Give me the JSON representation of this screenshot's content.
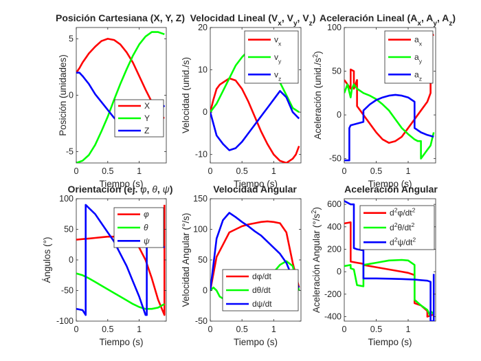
{
  "chart_data": [
    {
      "type": "line",
      "title": "Posición Cartesiana (X, Y, Z)",
      "xlabel": "Tiempo (s)",
      "ylabel": "Posición (unidades)",
      "xlim": [
        0,
        1.43
      ],
      "ylim": [
        -6,
        6
      ],
      "xticks": [
        0,
        0.5,
        1
      ],
      "xtick_labels": [
        "0",
        "0.5",
        "1"
      ],
      "yticks": [
        -5,
        0,
        5
      ],
      "ytick_labels": [
        "-5",
        "0",
        "5"
      ],
      "legend_loc": "lower-right",
      "colors": {
        "X": "#ff0000",
        "Y": "#00ff00",
        "Z": "#0000ff"
      },
      "series": [
        {
          "name": "X",
          "label": "X",
          "color": "#ff0000",
          "x": [
            0,
            0.05,
            0.1,
            0.2,
            0.3,
            0.4,
            0.5,
            0.6,
            0.7,
            0.8,
            0.9,
            1.0,
            1.1,
            1.2,
            1.3,
            1.35,
            1.4
          ],
          "y": [
            2.0,
            2.4,
            2.9,
            3.7,
            4.3,
            4.8,
            5.0,
            4.9,
            4.5,
            3.8,
            2.9,
            1.7,
            0.5,
            -0.6,
            -1.6,
            -2.0,
            -2.0
          ]
        },
        {
          "name": "Y",
          "label": "Y",
          "color": "#00ff00",
          "x": [
            0,
            0.1,
            0.2,
            0.3,
            0.4,
            0.5,
            0.6,
            0.7,
            0.8,
            0.9,
            1.0,
            1.1,
            1.2,
            1.3,
            1.4
          ],
          "y": [
            -6.0,
            -5.8,
            -5.3,
            -4.4,
            -3.2,
            -1.9,
            -0.4,
            1.0,
            2.3,
            3.5,
            4.5,
            5.2,
            5.6,
            5.6,
            5.4
          ]
        },
        {
          "name": "Z",
          "label": "Z",
          "color": "#0000ff",
          "x": [
            0,
            0.05,
            0.1,
            0.2,
            0.3,
            0.4,
            0.5,
            0.6,
            0.7,
            0.8,
            0.9,
            1.0,
            1.1,
            1.2,
            1.3,
            1.4
          ],
          "y": [
            2.0,
            2.0,
            1.7,
            1.0,
            0.1,
            -0.6,
            -1.3,
            -2.0,
            -2.6,
            -3.0,
            -3.2,
            -3.2,
            -2.9,
            -2.3,
            -1.5,
            -0.9
          ]
        }
      ]
    },
    {
      "type": "line",
      "title_parts": [
        "Velocidad Lineal (V",
        "x",
        ", V",
        "y",
        ", V",
        "z",
        ")"
      ],
      "xlabel": "Tiempo (s)",
      "ylabel": "Velocidad (unid./s)",
      "xlim": [
        0,
        1.43
      ],
      "ylim": [
        -12,
        20
      ],
      "xticks": [
        0,
        0.5,
        1
      ],
      "xtick_labels": [
        "0",
        "0.5",
        "1"
      ],
      "yticks": [
        -10,
        0,
        10,
        20
      ],
      "ytick_labels": [
        "-10",
        "0",
        "10",
        "20"
      ],
      "legend_loc": "top-right",
      "colors": {
        "vx": "#ff0000",
        "vy": "#00ff00",
        "vz": "#0000ff"
      },
      "series": [
        {
          "name": "vx",
          "label": "v",
          "sub": "x",
          "color": "#ff0000",
          "x": [
            0,
            0.05,
            0.1,
            0.15,
            0.2,
            0.3,
            0.4,
            0.5,
            0.6,
            0.7,
            0.8,
            0.9,
            1.0,
            1.1,
            1.2,
            1.3,
            1.35,
            1.4
          ],
          "y": [
            0,
            3,
            5.5,
            6.5,
            7,
            8,
            7.5,
            5.5,
            2.5,
            -1,
            -4.5,
            -7.5,
            -10,
            -11.5,
            -12,
            -11,
            -10,
            -8
          ]
        },
        {
          "name": "vy",
          "label": "v",
          "sub": "y",
          "color": "#00ff00",
          "x": [
            0,
            0.1,
            0.2,
            0.3,
            0.4,
            0.5,
            0.6,
            0.7,
            0.8,
            0.9,
            1.0,
            1.1,
            1.2,
            1.3,
            1.4
          ],
          "y": [
            0,
            2,
            5,
            8,
            11,
            13,
            14.5,
            15,
            14.5,
            13,
            10.5,
            7,
            4,
            1,
            0
          ]
        },
        {
          "name": "vz",
          "label": "v",
          "sub": "z",
          "color": "#0000ff",
          "x": [
            0,
            0.1,
            0.2,
            0.3,
            0.4,
            0.5,
            0.6,
            0.7,
            0.8,
            0.9,
            1.0,
            1.1,
            1.2,
            1.3,
            1.4
          ],
          "y": [
            0,
            -5.5,
            -7.5,
            -9,
            -8.5,
            -7,
            -5,
            -3,
            -1,
            1,
            3,
            5,
            3.5,
            0,
            -1.5
          ]
        }
      ]
    },
    {
      "type": "line",
      "title_parts": [
        "Aceleración Lineal (A",
        "x",
        ", A",
        "y",
        ", A",
        "z",
        ")"
      ],
      "xlabel": "Tiempo (s)",
      "ylabel_parts": [
        "Aceleración (unid./s",
        "2",
        ")"
      ],
      "xlim": [
        0,
        1.43
      ],
      "ylim": [
        -55,
        100
      ],
      "xticks": [
        0,
        0.5,
        1
      ],
      "xtick_labels": [
        "0",
        "0.5",
        "1"
      ],
      "yticks": [
        -50,
        0,
        50,
        100
      ],
      "ytick_labels": [
        "-50",
        "0",
        "50",
        "100"
      ],
      "legend_loc": "top-right",
      "colors": {
        "ax": "#ff0000",
        "ay": "#00ff00",
        "az": "#0000ff"
      },
      "series": [
        {
          "name": "ax",
          "label": "a",
          "sub": "x",
          "color": "#ff0000",
          "x": [
            0,
            0.1,
            0.1,
            0.15,
            0.15,
            0.2,
            0.2,
            0.25,
            0.3,
            0.4,
            0.5,
            0.6,
            0.7,
            0.8,
            0.9,
            1.0,
            1.1,
            1.2,
            1.3,
            1.35,
            1.35,
            1.4
          ],
          "y": [
            40,
            30,
            52,
            50,
            30,
            40,
            10,
            5,
            0,
            -10,
            -20,
            -28,
            -32,
            -30,
            -25,
            -15,
            -5,
            5,
            15,
            25,
            90,
            92
          ]
        },
        {
          "name": "ay",
          "label": "a",
          "sub": "y",
          "color": "#00ff00",
          "x": [
            0,
            0.05,
            0.1,
            0.12,
            0.15,
            0.2,
            0.3,
            0.4,
            0.5,
            0.6,
            0.7,
            0.8,
            0.9,
            1.0,
            1.1,
            1.15,
            1.2,
            1.2,
            1.3,
            1.35,
            1.4
          ],
          "y": [
            25,
            35,
            20,
            30,
            35,
            30,
            25,
            22,
            18,
            12,
            5,
            -5,
            -15,
            -22,
            -28,
            -30,
            -30,
            -50,
            -40,
            -35,
            -20
          ]
        },
        {
          "name": "az",
          "label": "a",
          "sub": "z",
          "color": "#0000ff",
          "x": [
            0,
            0.08,
            0.08,
            0.1,
            0.2,
            0.3,
            0.3,
            0.4,
            0.5,
            0.6,
            0.7,
            0.8,
            0.9,
            1.0,
            1.1,
            1.1,
            1.2,
            1.3,
            1.4
          ],
          "y": [
            -52,
            -52,
            -15,
            -12,
            -10,
            -8,
            5,
            12,
            17,
            20,
            22,
            23,
            22,
            20,
            15,
            -15,
            -20,
            -23,
            -25
          ]
        }
      ]
    },
    {
      "type": "line",
      "title_parts": [
        "Orientación (ej. ",
        "φ",
        ", ",
        "θ",
        ", ",
        "ψ",
        ")"
      ],
      "xlabel": "Tiempo (s)",
      "ylabel": "Ángulos (°)",
      "xlim": [
        0,
        1.43
      ],
      "ylim": [
        -100,
        100
      ],
      "xticks": [
        0,
        0.5,
        1
      ],
      "xtick_labels": [
        "0",
        "0.5",
        "1"
      ],
      "yticks": [
        -100,
        -50,
        0,
        50,
        100
      ],
      "ytick_labels": [
        "-100",
        "-50",
        "0",
        "50",
        "100"
      ],
      "legend_loc": "top-right",
      "colors": {
        "phi": "#ff0000",
        "theta": "#00ff00",
        "psi": "#0000ff"
      },
      "series": [
        {
          "name": "phi",
          "label": "φ",
          "color": "#ff0000",
          "x": [
            0,
            0.1,
            0.2,
            0.3,
            0.4,
            0.5,
            0.6,
            0.7,
            0.8,
            0.9,
            1.0,
            1.1,
            1.2,
            1.3,
            1.4,
            1.4
          ],
          "y": [
            33,
            34,
            35,
            36,
            37,
            38,
            38,
            37,
            35,
            30,
            20,
            0,
            -30,
            -65,
            -90,
            90
          ]
        },
        {
          "name": "theta",
          "label": "θ",
          "color": "#00ff00",
          "x": [
            0,
            0.1,
            0.2,
            0.3,
            0.4,
            0.5,
            0.6,
            0.7,
            0.8,
            0.9,
            1.0,
            1.1,
            1.2,
            1.3,
            1.4
          ],
          "y": [
            -22,
            -25,
            -30,
            -36,
            -42,
            -48,
            -54,
            -60,
            -66,
            -72,
            -77,
            -80,
            -80,
            -78,
            -72
          ]
        },
        {
          "name": "psi",
          "label": "ψ",
          "color": "#0000ff",
          "x": [
            0,
            0.1,
            0.15,
            0.15,
            0.2,
            0.3,
            0.4,
            0.5,
            0.6,
            0.7,
            0.8,
            0.9,
            1.0,
            1.1,
            1.12,
            1.12,
            1.2,
            1.3,
            1.3,
            1.4
          ],
          "y": [
            -80,
            -82,
            -90,
            90,
            85,
            75,
            60,
            45,
            30,
            10,
            -10,
            -35,
            -60,
            -90,
            -90,
            40,
            45,
            65,
            30,
            20
          ]
        }
      ]
    },
    {
      "type": "line",
      "title": "Velocidad Angular",
      "xlabel": "Tiempo (s)",
      "ylabel": "Velocidad Angular (°/s)",
      "xlim": [
        0,
        1.43
      ],
      "ylim": [
        -50,
        150
      ],
      "xticks": [
        0,
        0.5,
        1
      ],
      "xtick_labels": [
        "0",
        "0.5",
        "1"
      ],
      "yticks": [
        -50,
        0,
        50,
        100,
        150
      ],
      "ytick_labels": [
        "-50",
        "0",
        "50",
        "100",
        "150"
      ],
      "legend_loc": "bottom-right",
      "colors": {
        "dphi": "#ff0000",
        "dtheta": "#00ff00",
        "dpsi": "#0000ff"
      },
      "series": [
        {
          "name": "dphi",
          "label": "dφ/dt",
          "color": "#ff0000",
          "x": [
            0,
            0.1,
            0.2,
            0.3,
            0.4,
            0.5,
            0.6,
            0.7,
            0.8,
            0.9,
            1.0,
            1.1,
            1.2,
            1.3,
            1.4
          ],
          "y": [
            0,
            55,
            75,
            95,
            100,
            105,
            108,
            110,
            112,
            113,
            112,
            110,
            95,
            45,
            5
          ]
        },
        {
          "name": "dtheta",
          "label": "dθ/dt",
          "color": "#00ff00",
          "x": [
            0,
            0.05,
            0.1,
            0.15,
            0.2,
            0.3,
            0.5,
            0.7,
            0.9,
            1.0,
            1.1,
            1.2,
            1.3,
            1.4
          ],
          "y": [
            0,
            5,
            0,
            -10,
            -13,
            -12,
            -10,
            -5,
            10,
            30,
            42,
            48,
            40,
            0
          ]
        },
        {
          "name": "dpsi",
          "label": "dψ/dt",
          "color": "#0000ff",
          "x": [
            0,
            0.1,
            0.2,
            0.3,
            0.4,
            0.5,
            0.6,
            0.7,
            0.8,
            0.9,
            1.0,
            1.1,
            1.2,
            1.3,
            1.4
          ],
          "y": [
            0,
            85,
            115,
            127,
            120,
            112,
            105,
            97,
            90,
            80,
            70,
            60,
            45,
            20,
            5
          ]
        }
      ]
    },
    {
      "type": "line",
      "title": "Aceleración Angular",
      "xlabel": "Tiempo (s)",
      "ylabel_parts": [
        "Aceleración Angular (°/s",
        "2",
        ")"
      ],
      "xlim": [
        0,
        1.43
      ],
      "ylim": [
        -440,
        650
      ],
      "xticks": [
        0,
        0.5,
        1
      ],
      "xtick_labels": [
        "0",
        "0.5",
        "1"
      ],
      "yticks": [
        -400,
        -200,
        0,
        200,
        400,
        600
      ],
      "ytick_labels": [
        "-400",
        "-200",
        "0",
        "200",
        "400",
        "600"
      ],
      "legend_loc": "top-right",
      "colors": {
        "d2phi": "#ff0000",
        "d2theta": "#00ff00",
        "d2psi": "#0000ff"
      },
      "series": [
        {
          "name": "d2phi",
          "label_parts": [
            "d",
            "2",
            "φ/dt",
            "2"
          ],
          "color": "#ff0000",
          "x": [
            0,
            0.1,
            0.1,
            0.2,
            0.3,
            0.3,
            0.5,
            0.7,
            0.9,
            1.0,
            1.1,
            1.1,
            1.2,
            1.3,
            1.3,
            1.4
          ],
          "y": [
            430,
            440,
            90,
            80,
            70,
            60,
            40,
            20,
            0,
            -10,
            -30,
            -280,
            -300,
            -350,
            -400,
            -380
          ]
        },
        {
          "name": "d2theta",
          "label_parts": [
            "d",
            "2",
            "θ/dt",
            "2"
          ],
          "color": "#00ff00",
          "x": [
            0,
            0.1,
            0.1,
            0.15,
            0.2,
            0.3,
            0.3,
            0.5,
            0.7,
            0.9,
            1.0,
            1.1,
            1.1,
            1.2,
            1.3,
            1.35,
            1.35,
            1.4
          ],
          "y": [
            50,
            60,
            30,
            20,
            -120,
            -130,
            60,
            80,
            100,
            105,
            100,
            60,
            -250,
            -300,
            -340,
            -400,
            -350,
            -380
          ]
        },
        {
          "name": "d2psi",
          "label_parts": [
            "d",
            "2",
            "ψ/dt",
            "2"
          ],
          "color": "#0000ff",
          "x": [
            0,
            0.1,
            0.15,
            0.15,
            0.2,
            0.3,
            0.3,
            0.5,
            0.7,
            0.9,
            1.1,
            1.2,
            1.3,
            1.35,
            1.35,
            1.4,
            1.4
          ],
          "y": [
            630,
            600,
            600,
            210,
            200,
            190,
            -60,
            -60,
            -62,
            -65,
            -70,
            -75,
            -80,
            -90,
            -440,
            -440,
            -20
          ]
        }
      ]
    }
  ]
}
